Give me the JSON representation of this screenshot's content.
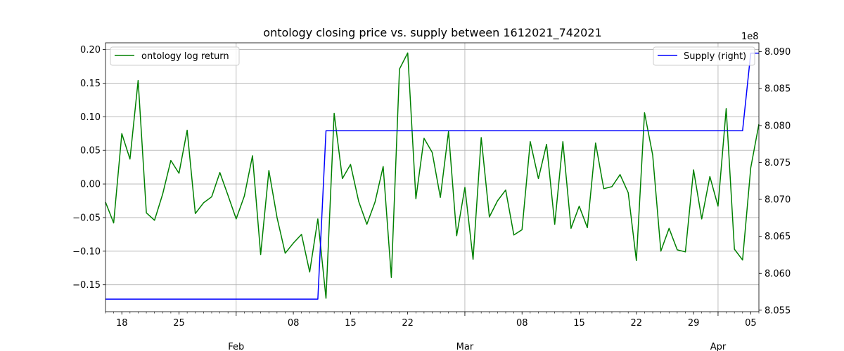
{
  "chart_data": {
    "type": "line",
    "title": "ontology closing price vs. supply between 1612021_742021",
    "x_axis": {
      "start_date": "2021-01-16",
      "end_date": "2021-04-06",
      "minor_ticks": [
        {
          "date": "2021-01-18",
          "label": "18"
        },
        {
          "date": "2021-01-25",
          "label": "25"
        },
        {
          "date": "2021-02-08",
          "label": "08"
        },
        {
          "date": "2021-02-15",
          "label": "15"
        },
        {
          "date": "2021-02-22",
          "label": "22"
        },
        {
          "date": "2021-03-08",
          "label": "08"
        },
        {
          "date": "2021-03-15",
          "label": "15"
        },
        {
          "date": "2021-03-22",
          "label": "22"
        },
        {
          "date": "2021-03-29",
          "label": "29"
        },
        {
          "date": "2021-04-05",
          "label": "05"
        }
      ],
      "major_ticks": [
        {
          "date": "2021-02-01",
          "label": "Feb"
        },
        {
          "date": "2021-03-01",
          "label": "Mar"
        },
        {
          "date": "2021-04-01",
          "label": "Apr"
        }
      ]
    },
    "y_left": {
      "ylim": [
        -0.19,
        0.21
      ],
      "ticks": [
        -0.15,
        -0.1,
        -0.05,
        0.0,
        0.05,
        0.1,
        0.15,
        0.2
      ],
      "tick_labels": [
        "−0.15",
        "−0.10",
        "−0.05",
        "0.00",
        "0.05",
        "0.10",
        "0.15",
        "0.20"
      ]
    },
    "y_right": {
      "multiplier_label": "1e8",
      "ylim": [
        8.0548,
        8.0912
      ],
      "ticks": [
        8.055,
        8.06,
        8.065,
        8.07,
        8.075,
        8.08,
        8.085,
        8.09
      ],
      "tick_labels": [
        "8.055",
        "8.060",
        "8.065",
        "8.070",
        "8.075",
        "8.080",
        "8.085",
        "8.090"
      ]
    },
    "grid": true,
    "series": [
      {
        "name": "ontology log return",
        "axis": "left",
        "color": "#008000",
        "legend_position": "top-left",
        "x_start": "2021-01-16",
        "x_step_days": 1,
        "values": [
          -0.027,
          -0.058,
          0.075,
          0.037,
          0.154,
          -0.043,
          -0.054,
          -0.015,
          0.035,
          0.016,
          0.08,
          -0.044,
          -0.028,
          -0.019,
          0.017,
          -0.017,
          -0.052,
          -0.018,
          0.042,
          -0.105,
          0.02,
          -0.05,
          -0.103,
          -0.088,
          -0.075,
          -0.131,
          -0.052,
          -0.17,
          0.105,
          0.008,
          0.029,
          -0.026,
          -0.06,
          -0.027,
          0.026,
          -0.139,
          0.171,
          0.195,
          -0.022,
          0.068,
          0.047,
          -0.02,
          0.078,
          -0.077,
          -0.005,
          -0.112,
          0.069,
          -0.049,
          -0.025,
          -0.009,
          -0.076,
          -0.068,
          0.063,
          0.008,
          0.059,
          -0.06,
          0.063,
          -0.066,
          -0.033,
          -0.065,
          0.061,
          -0.007,
          -0.004,
          0.014,
          -0.013,
          -0.114,
          0.106,
          0.043,
          -0.1,
          -0.066,
          -0.098,
          -0.101,
          0.021,
          -0.052,
          0.011,
          -0.033,
          0.112,
          -0.097,
          -0.113,
          0.024,
          0.089
        ]
      },
      {
        "name": "Supply (right)",
        "axis": "right",
        "color": "#0000ff",
        "legend_position": "top-right",
        "points": [
          {
            "x": "2021-01-16",
            "y": 8.0565
          },
          {
            "x": "2021-02-11",
            "y": 8.0565
          },
          {
            "x": "2021-02-12",
            "y": 8.0793
          },
          {
            "x": "2021-04-04",
            "y": 8.0793
          },
          {
            "x": "2021-04-05",
            "y": 8.0898
          },
          {
            "x": "2021-04-06",
            "y": 8.0898
          }
        ]
      }
    ]
  }
}
